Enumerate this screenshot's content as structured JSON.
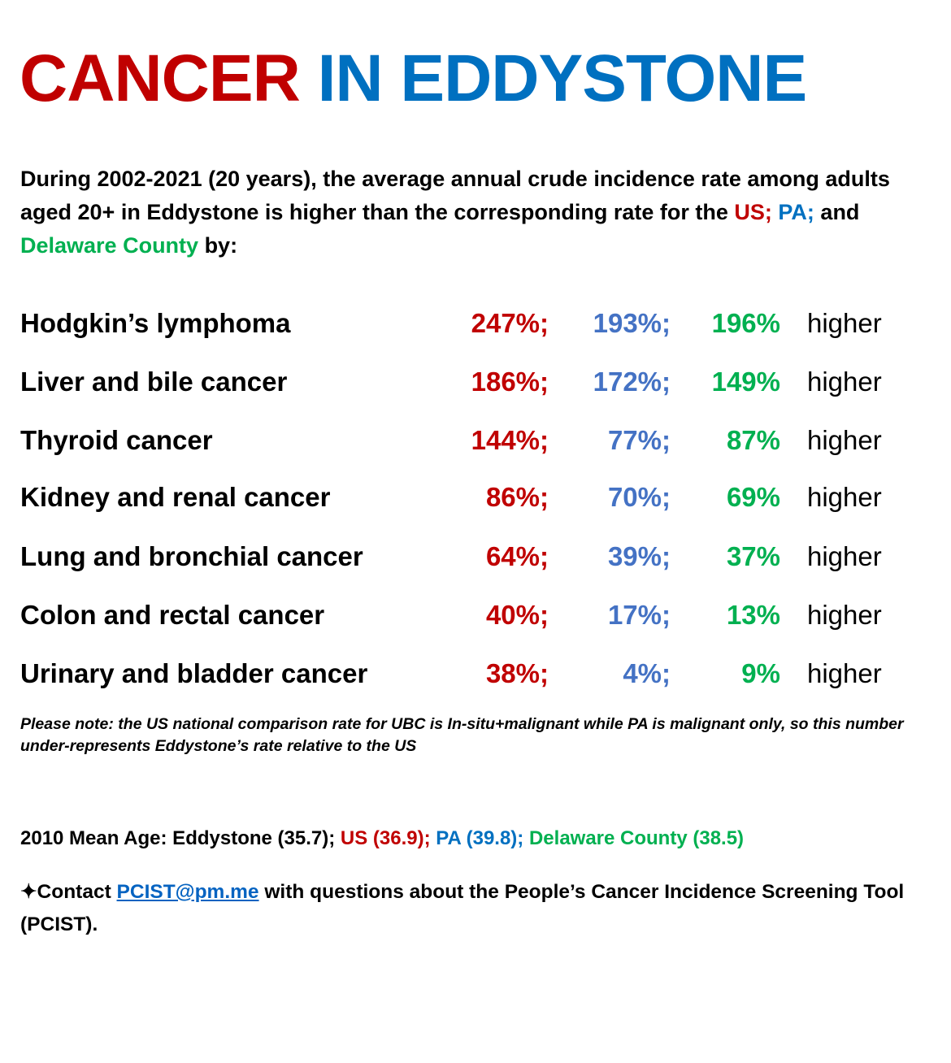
{
  "title": {
    "part1": "CANCER",
    "part2": "IN EDDYSTONE"
  },
  "intro": {
    "text1": "During 2002-2021 (20 years), the average annual crude incidence rate among adults aged 20+ in Eddystone is higher than the corresponding rate for the ",
    "us": "US;",
    "pa": "PA;",
    "and": " and ",
    "county": "Delaware County",
    "by": " by:"
  },
  "colors": {
    "us": "#C00000",
    "pa": "#4472C4",
    "county": "#00B050",
    "title_blue": "#0070C0"
  },
  "rows": [
    {
      "label": "Hodgkin’s lymphoma",
      "us": "247%;",
      "pa": "193%;",
      "county": "196%",
      "suffix": "higher"
    },
    {
      "label": "Liver and bile cancer",
      "us": "186%;",
      "pa": "172%;",
      "county": "149%",
      "suffix": "higher"
    },
    {
      "label": "Thyroid cancer",
      "us": "144%;",
      "pa": "77%;",
      "county": "87%",
      "suffix": "higher"
    },
    {
      "label": "Kidney and renal cancer",
      "us": "86%;",
      "pa": "70%;",
      "county": "69%",
      "suffix": "higher"
    },
    {
      "label": "Lung and bronchial cancer",
      "us": "64%;",
      "pa": "39%;",
      "county": "37%",
      "suffix": "higher"
    },
    {
      "label": "Colon and rectal cancer",
      "us": "40%;",
      "pa": "17%;",
      "county": "13%",
      "suffix": "higher"
    },
    {
      "label": "Urinary and bladder cancer",
      "us": "38%;",
      "pa": "4%;",
      "county": "9%",
      "suffix": "higher"
    }
  ],
  "note": "Please note: the US national comparison rate for UBC is In-situ+malignant while PA is malignant only, so this number under-represents Eddystone’s rate relative to the US",
  "mean_age": {
    "prefix": "2010 Mean Age: Eddystone (35.7); ",
    "us": "US (36.9);",
    "pa": " PA (39.8);",
    "county": " Delaware County (38.5)"
  },
  "contact": {
    "star": "✦",
    "prefix": "Contact ",
    "email": "PCIST@pm.me",
    "suffix": " with questions about the People’s Cancer Incidence Screening Tool (PCIST)."
  }
}
